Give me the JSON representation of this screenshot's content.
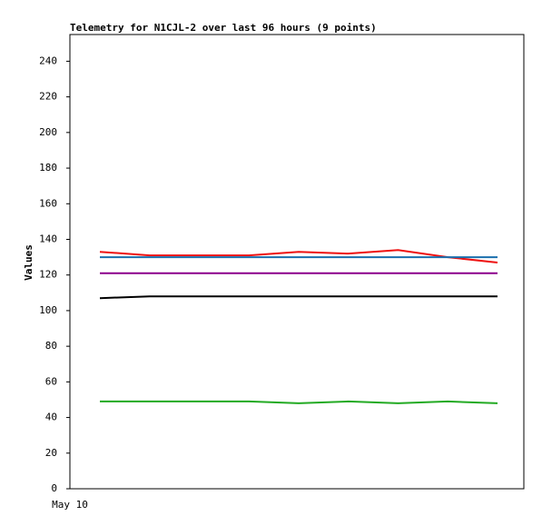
{
  "chart_data": {
    "type": "line",
    "title": "Telemetry for N1CJL-2 over last 96 hours (9 points)",
    "y_label": "Values",
    "x_axis_label": "May 10",
    "categories": [
      null,
      null,
      null,
      null,
      null,
      null,
      null,
      null,
      null
    ],
    "series": [
      {
        "color": "#ee1111",
        "values": [
          133,
          131,
          131,
          131,
          133,
          132,
          134,
          130,
          127
        ]
      },
      {
        "color": "#1a6fad",
        "values": [
          130,
          130,
          130,
          130,
          130,
          130,
          130,
          130,
          130
        ]
      },
      {
        "color": "#8b008b",
        "values": [
          121,
          121,
          121,
          121,
          121,
          121,
          121,
          121,
          121
        ]
      },
      {
        "color": "#000000",
        "values": [
          107,
          108,
          108,
          108,
          108,
          108,
          108,
          108,
          108
        ]
      },
      {
        "color": "#22aa22",
        "values": [
          49,
          49,
          49,
          49,
          48,
          49,
          48,
          49,
          48
        ]
      }
    ],
    "ylim": [
      0,
      255
    ],
    "yticks": [
      0,
      20,
      40,
      60,
      80,
      100,
      120,
      140,
      160,
      180,
      200,
      220,
      240
    ]
  }
}
